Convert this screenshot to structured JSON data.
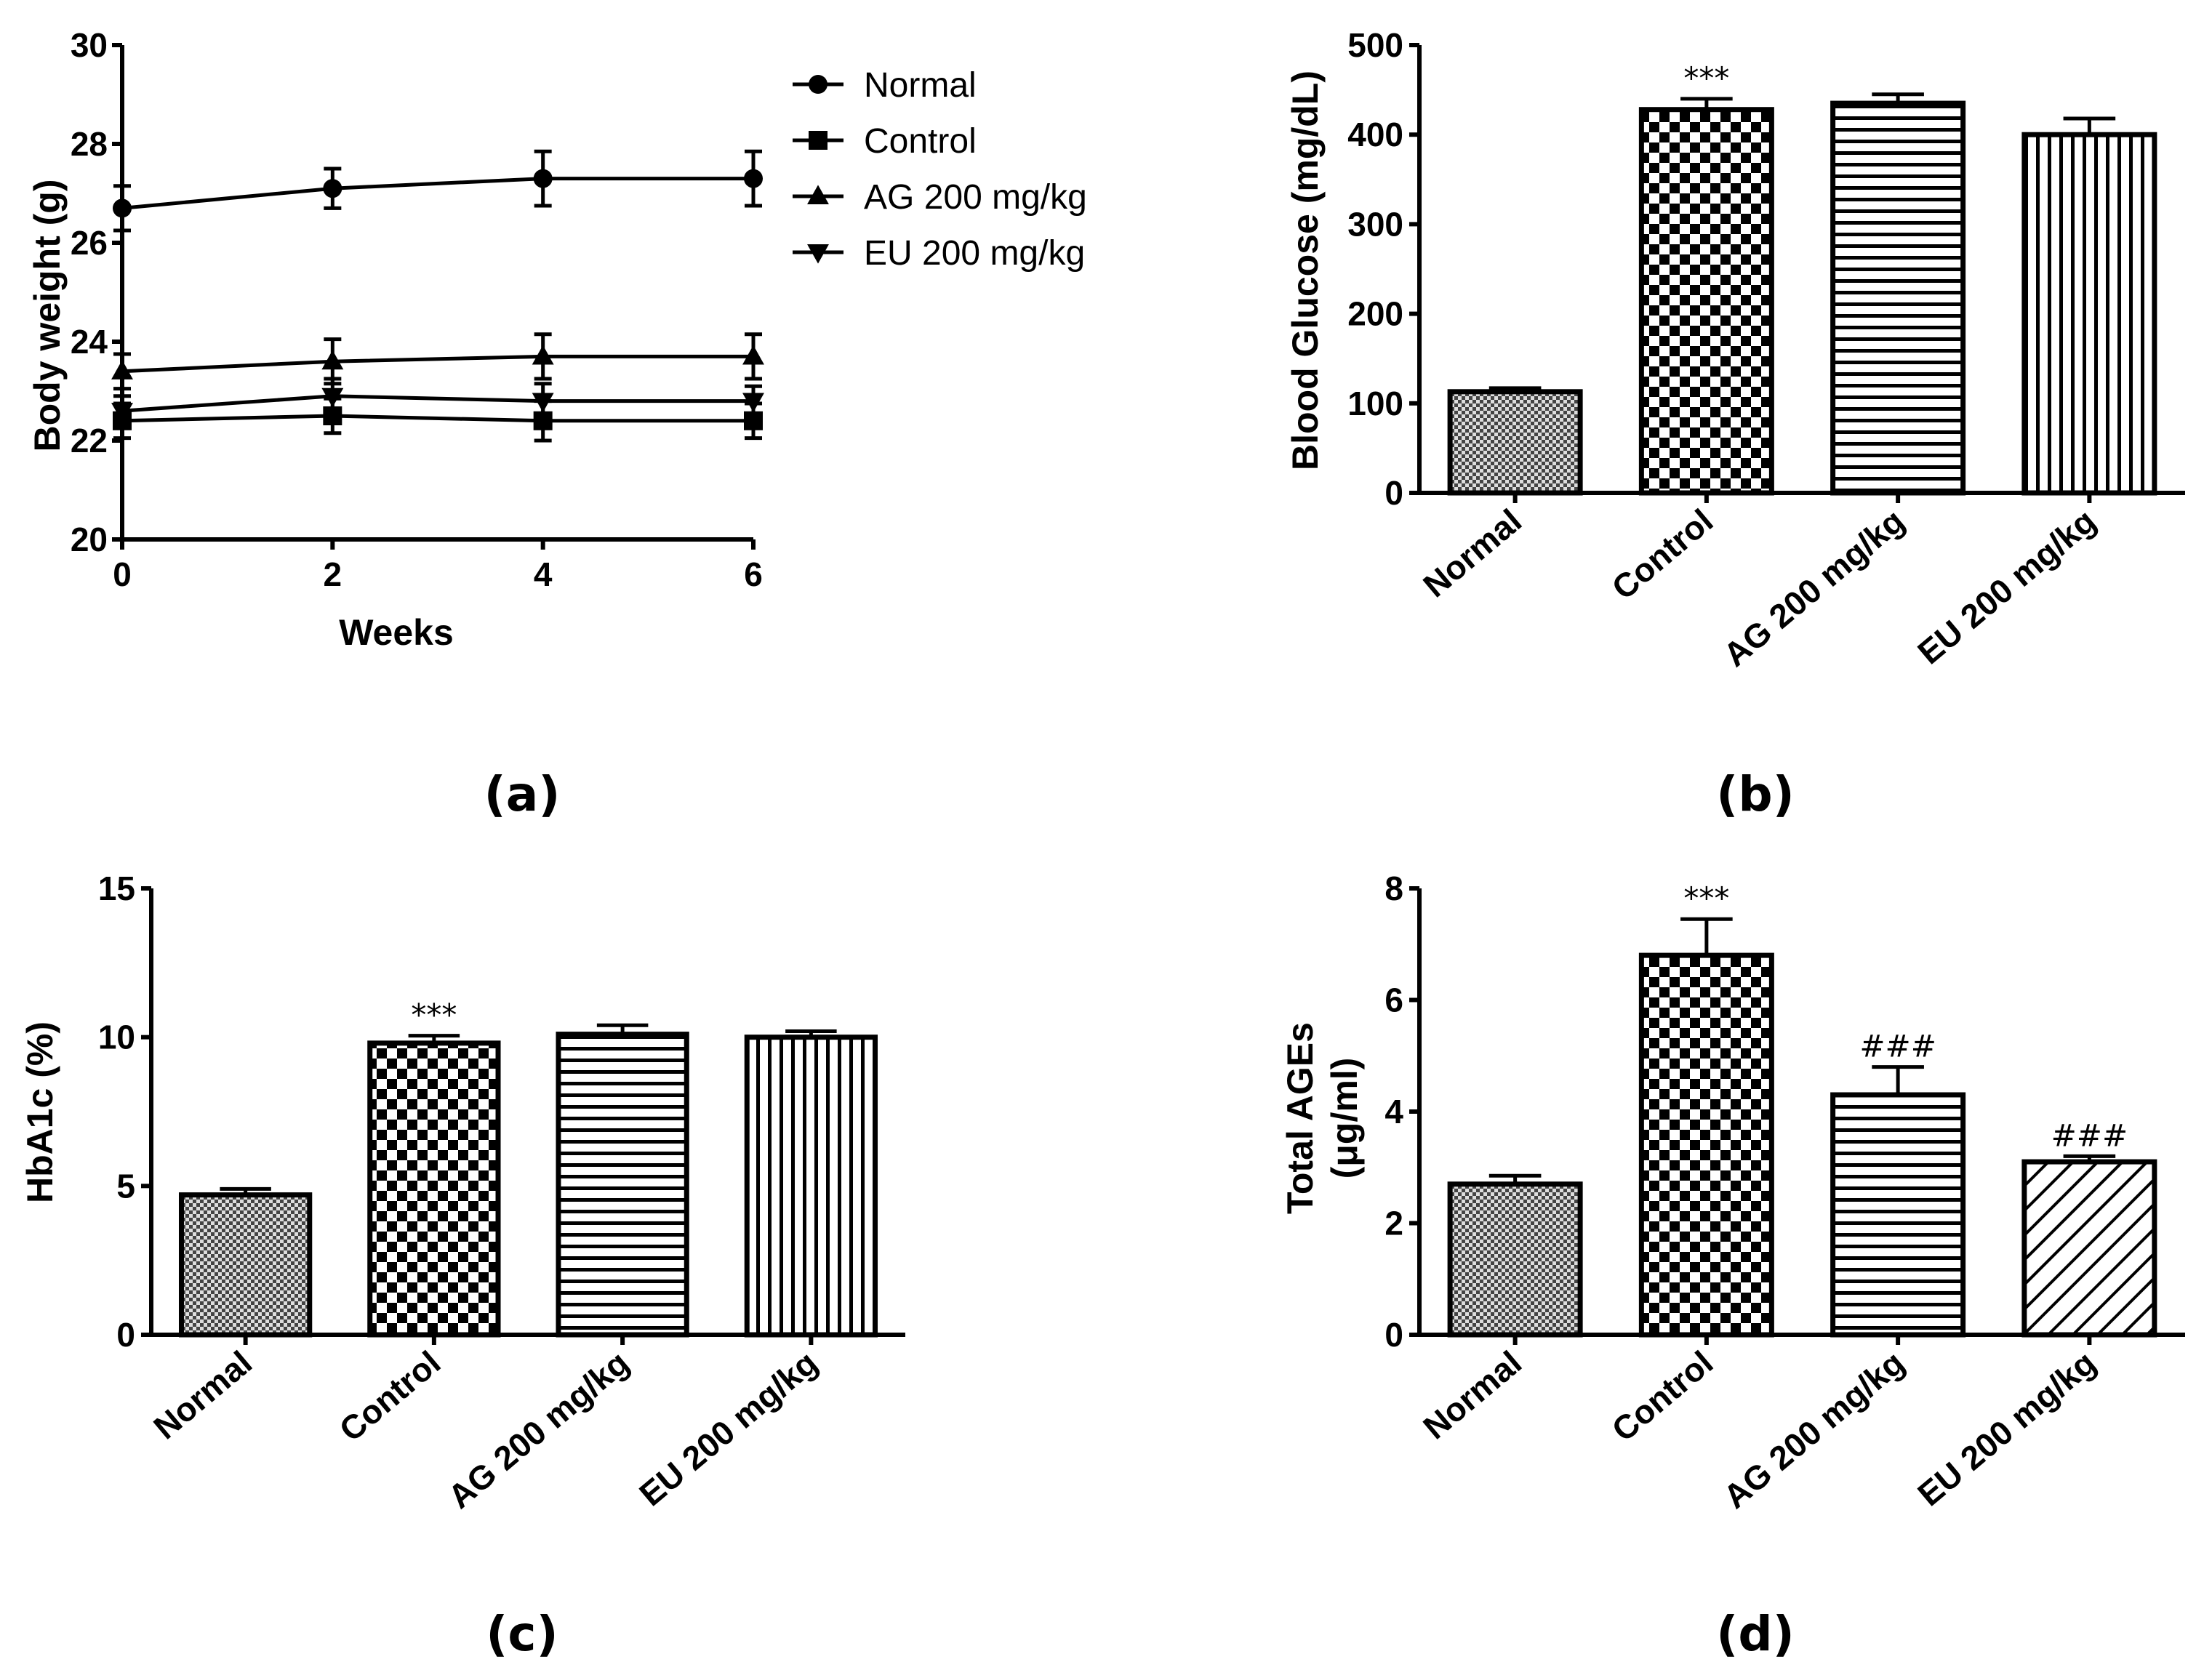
{
  "colors": {
    "ink": "#000000",
    "background": "#ffffff"
  },
  "chart_data": [
    {
      "id": "a",
      "panel_label": "(a)",
      "type": "line",
      "xlabel": "Weeks",
      "ylabel": "Body weight (g)",
      "x": [
        0,
        2,
        4,
        6
      ],
      "xticks": [
        "0",
        "2",
        "4",
        "6"
      ],
      "xlim": [
        0,
        6
      ],
      "ylim": [
        20,
        30
      ],
      "yticks": [
        "20",
        "22",
        "24",
        "26",
        "28",
        "30"
      ],
      "legend_position": "top-right",
      "series": [
        {
          "name": "Normal",
          "marker": "circle",
          "values": [
            26.7,
            27.1,
            27.3,
            27.3
          ],
          "errors": [
            0.45,
            0.4,
            0.55,
            0.55
          ]
        },
        {
          "name": "Control",
          "marker": "square",
          "values": [
            22.4,
            22.5,
            22.4,
            22.4
          ],
          "errors": [
            0.35,
            0.35,
            0.4,
            0.35
          ]
        },
        {
          "name": "AG 200 mg/kg",
          "marker": "triangle-up",
          "values": [
            23.4,
            23.6,
            23.7,
            23.7
          ],
          "errors": [
            0.35,
            0.45,
            0.45,
            0.45
          ]
        },
        {
          "name": "EU 200 mg/kg",
          "marker": "triangle-down",
          "values": [
            22.6,
            22.9,
            22.8,
            22.8
          ],
          "errors": [
            0.3,
            0.35,
            0.35,
            0.3
          ]
        }
      ]
    },
    {
      "id": "b",
      "panel_label": "(b)",
      "type": "bar",
      "xlabel": "",
      "ylabel": "Blood Glucose (mg/dL)",
      "categories": [
        "Normal",
        "Control",
        "AG 200 mg/kg",
        "EU 200 mg/kg"
      ],
      "values": [
        113,
        428,
        435,
        400
      ],
      "errors": [
        4,
        12,
        10,
        18
      ],
      "annotations": [
        "",
        "***",
        "",
        ""
      ],
      "patterns": [
        "dense-check",
        "checker",
        "horizontal",
        "vertical"
      ],
      "ylim": [
        0,
        500
      ],
      "yticks": [
        "0",
        "100",
        "200",
        "300",
        "400",
        "500"
      ]
    },
    {
      "id": "c",
      "panel_label": "(c)",
      "type": "bar",
      "xlabel": "",
      "ylabel": "HbA1c (%)",
      "categories": [
        "Normal",
        "Control",
        "AG 200 mg/kg",
        "EU 200 mg/kg"
      ],
      "values": [
        4.7,
        9.8,
        10.1,
        10.0
      ],
      "errors": [
        0.2,
        0.25,
        0.3,
        0.2
      ],
      "annotations": [
        "",
        "***",
        "",
        ""
      ],
      "patterns": [
        "dense-check",
        "checker",
        "horizontal",
        "vertical"
      ],
      "ylim": [
        0,
        15
      ],
      "yticks": [
        "0",
        "5",
        "10",
        "15"
      ]
    },
    {
      "id": "d",
      "panel_label": "(d)",
      "type": "bar",
      "xlabel": "",
      "ylabel": "Total AGEs",
      "ylabel2": "(μg/ml)",
      "categories": [
        "Normal",
        "Control",
        "AG 200 mg/kg",
        "EU 200 mg/kg"
      ],
      "values": [
        2.7,
        6.8,
        4.3,
        3.1
      ],
      "errors": [
        0.15,
        0.65,
        0.5,
        0.1
      ],
      "annotations": [
        "",
        "***",
        "###",
        "###"
      ],
      "patterns": [
        "dense-check",
        "checker",
        "horizontal",
        "diagonal"
      ],
      "ylim": [
        0,
        8
      ],
      "yticks": [
        "0",
        "2",
        "4",
        "6",
        "8"
      ]
    }
  ]
}
